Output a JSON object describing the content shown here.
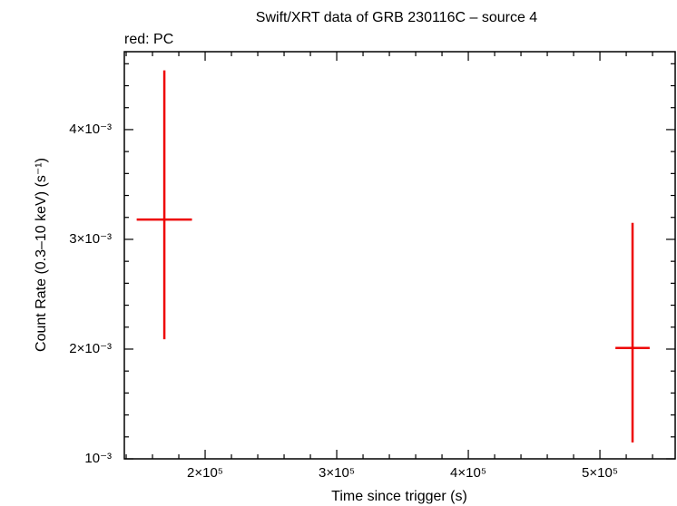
{
  "chart_data": {
    "type": "errorbar",
    "title": "Swift/XRT data of GRB 230116C – source 4",
    "subtitle": "red: PC",
    "x_label": "Time since trigger (s)",
    "y_label": "Count Rate (0.3–10 keV) (s⁻¹)",
    "series": [
      {
        "color": "#ee0000",
        "x": [
          169000,
          524800
        ],
        "x_err": [
          21000,
          13000
        ],
        "values": [
          0.00318,
          0.00201
        ],
        "y_err_plus": [
          0.00136,
          0.00114
        ],
        "y_err_minus": [
          0.00109,
          0.00086
        ]
      }
    ],
    "xlim": [
      138600,
      557200
    ],
    "ylim": [
      0.001,
      0.00471
    ],
    "xticks": [
      {
        "value": 200000,
        "label": "2×10⁵"
      },
      {
        "value": 300000,
        "label": "3×10⁵"
      },
      {
        "value": 400000,
        "label": "4×10⁵"
      },
      {
        "value": 500000,
        "label": "5×10⁵"
      }
    ],
    "yticks": [
      {
        "value": 0.001,
        "label": "10⁻³"
      },
      {
        "value": 0.002,
        "label": "2×10⁻³"
      },
      {
        "value": 0.003,
        "label": "3×10⁻³"
      },
      {
        "value": 0.004,
        "label": "4×10⁻³"
      }
    ],
    "xminorticks": [
      140000,
      160000,
      180000,
      220000,
      240000,
      260000,
      280000,
      320000,
      340000,
      360000,
      380000,
      420000,
      440000,
      460000,
      480000,
      520000,
      540000
    ],
    "yminorticks": [
      0.0012,
      0.0014,
      0.0016,
      0.0018,
      0.0022,
      0.0024,
      0.0026,
      0.0028,
      0.0032,
      0.0034,
      0.0036,
      0.0038,
      0.0042,
      0.0044,
      0.0046
    ]
  }
}
